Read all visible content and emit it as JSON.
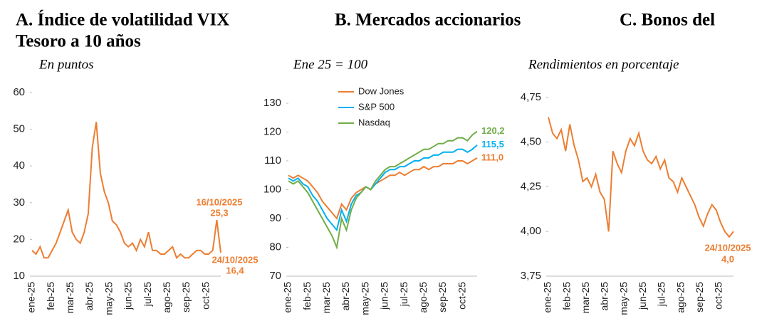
{
  "chart_data": [
    {
      "type": "line",
      "title": "A. Índice de volatilidad VIX",
      "subtitle": "En puntos",
      "xtick_labels": [
        "ene-25",
        "feb-25",
        "mar-25",
        "abr-25",
        "may-25",
        "jun-25",
        "jul-25",
        "ago-25",
        "sep-25",
        "oct-25"
      ],
      "series": [
        {
          "name": "VIX",
          "color": "#ed7d31",
          "values": [
            17,
            16,
            18,
            15,
            15,
            17,
            19,
            22,
            25,
            28,
            22,
            20,
            19,
            22,
            27,
            45,
            52,
            38,
            33,
            30,
            25,
            24,
            22,
            19,
            18,
            19,
            17,
            20,
            18,
            22,
            17,
            17,
            16,
            16,
            17,
            18,
            15,
            16,
            15,
            15,
            16,
            17,
            17,
            16,
            16,
            17,
            25.3,
            16.4
          ]
        }
      ],
      "ylim": [
        10,
        60
      ],
      "yticks": [
        10,
        20,
        30,
        40,
        50,
        60
      ],
      "annotations": [
        "16/10/2025",
        "25,3",
        "24/10/2025",
        "16,4"
      ]
    },
    {
      "type": "line",
      "title": "B.  Mercados accionarios",
      "subtitle": "Ene 25 = 100",
      "xtick_labels": [
        "ene-25",
        "feb-25",
        "mar-25",
        "abr-25",
        "may-25",
        "jun-25",
        "jul-25",
        "ago-25",
        "sep-25",
        "oct-25"
      ],
      "series": [
        {
          "name": "Dow Jones",
          "color": "#ed7d31",
          "values": [
            105,
            104,
            105,
            104,
            103,
            101,
            99,
            96,
            94,
            92,
            90,
            95,
            93,
            97,
            99,
            100,
            101,
            100,
            102,
            103,
            104,
            105,
            105,
            106,
            105,
            106,
            107,
            107,
            108,
            107,
            108,
            108,
            109,
            109,
            109,
            110,
            110,
            109,
            110,
            111.0
          ]
        },
        {
          "name": "S&P 500",
          "color": "#00b0f0",
          "values": [
            104,
            103,
            104,
            102,
            101,
            98,
            96,
            93,
            90,
            88,
            86,
            93,
            89,
            95,
            98,
            99,
            101,
            100,
            102,
            104,
            106,
            107,
            107,
            108,
            108,
            109,
            110,
            110,
            111,
            111,
            112,
            112,
            113,
            113,
            113,
            114,
            114,
            113,
            114,
            115.5
          ]
        },
        {
          "name": "Nasdaq",
          "color": "#70ad47",
          "values": [
            103,
            102,
            103,
            101,
            99,
            96,
            93,
            90,
            87,
            84,
            80,
            90,
            86,
            93,
            97,
            99,
            101,
            100,
            103,
            105,
            107,
            108,
            108,
            109,
            110,
            111,
            112,
            113,
            114,
            114,
            115,
            116,
            116,
            117,
            117,
            118,
            118,
            117,
            119,
            120.2
          ]
        }
      ],
      "ylim": [
        70,
        130
      ],
      "yticks": [
        70,
        80,
        90,
        100,
        110,
        120,
        130
      ],
      "annotations": [
        "120,2",
        "115,5",
        "111,0"
      ]
    },
    {
      "type": "line",
      "title": [
        "C. Bonos del",
        "Tesoro a 10 años"
      ],
      "subtitle": "Rendimientos en porcentaje",
      "xtick_labels": [
        "ene-25",
        "feb-25",
        "mar-25",
        "abr-25",
        "may-25",
        "jun-25",
        "jul-25",
        "ago-25",
        "sep-25",
        "oct-25"
      ],
      "series": [
        {
          "name": "Bono 10 años",
          "color": "#ed7d31",
          "values": [
            4.64,
            4.55,
            4.52,
            4.57,
            4.45,
            4.6,
            4.48,
            4.4,
            4.28,
            4.3,
            4.25,
            4.32,
            4.22,
            4.18,
            4.0,
            4.45,
            4.38,
            4.33,
            4.45,
            4.52,
            4.48,
            4.55,
            4.45,
            4.4,
            4.38,
            4.42,
            4.35,
            4.4,
            4.3,
            4.28,
            4.22,
            4.3,
            4.25,
            4.2,
            4.15,
            4.08,
            4.03,
            4.1,
            4.15,
            4.12,
            4.05,
            4.0,
            3.97,
            4.0
          ]
        }
      ],
      "ylim": [
        3.75,
        4.75
      ],
      "yticks": [
        {
          "value": 3.75,
          "label": "3,75"
        },
        {
          "value": 4.0,
          "label": "4,00"
        },
        {
          "value": 4.25,
          "label": "4,25"
        },
        {
          "value": 4.5,
          "label": "4,50"
        },
        {
          "value": 4.75,
          "label": "4,75"
        }
      ],
      "annotations": [
        "24/10/2025",
        "4,0"
      ]
    }
  ]
}
